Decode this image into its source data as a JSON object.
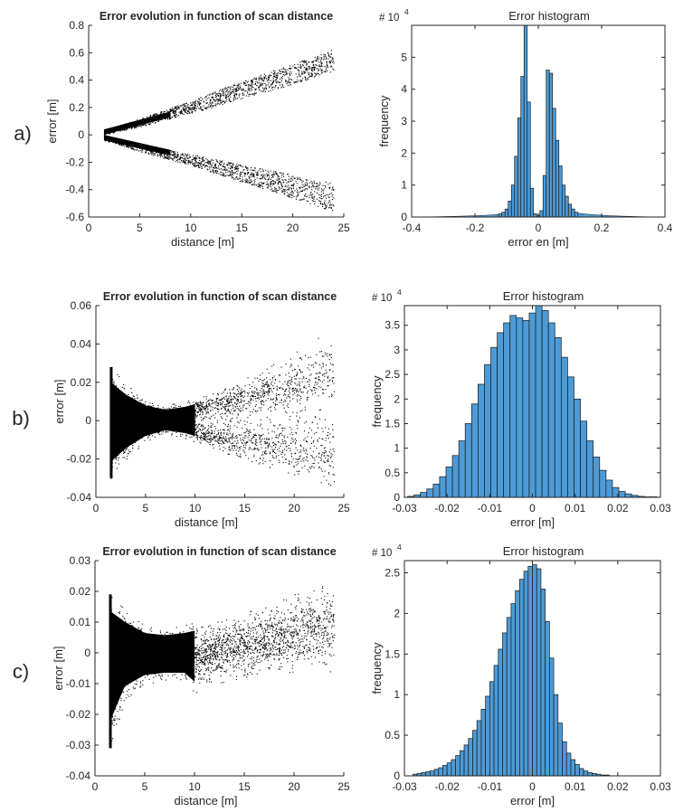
{
  "colors": {
    "scatter": "#000000",
    "hist_fill": "#4d9bd6",
    "hist_edge": "#1a1a1a",
    "axis": "#262626"
  },
  "rows": [
    {
      "label": "a)",
      "scatter": {
        "title": "Error evolution in function of scan distance",
        "xlabel": "distance [m]",
        "ylabel": "error [m]",
        "xticks": [
          "0",
          "5",
          "10",
          "15",
          "20",
          "25"
        ],
        "yticks": [
          "0.8",
          "0.6",
          "0.4",
          "0.2",
          "0",
          "-0.2",
          "-0.4",
          "-0.6"
        ]
      },
      "hist": {
        "title": "Error histogram",
        "xlabel": "error en [m]",
        "ylabel": "frequency",
        "multiplier": "# 10",
        "multiplier_exp": "4",
        "xticks": [
          "-0.4",
          "-0.2",
          "0",
          "0.2",
          "0.4"
        ],
        "yticks": [
          "5",
          "4",
          "3",
          "2",
          "1",
          "0"
        ]
      }
    },
    {
      "label": "b)",
      "scatter": {
        "title": "Error evolution in function of scan distance",
        "xlabel": "distance [m]",
        "ylabel": "error [m]",
        "xticks": [
          "0",
          "5",
          "10",
          "15",
          "20",
          "25"
        ],
        "yticks": [
          "0.06",
          "0.04",
          "0.02",
          "0",
          "-0.02",
          "-0.04"
        ]
      },
      "hist": {
        "title": "Error histogram",
        "xlabel": "error [m]",
        "ylabel": "frequency",
        "multiplier": "# 10",
        "multiplier_exp": "4",
        "xticks": [
          "-0.03",
          "-0.02",
          "-0.01",
          "0",
          "0.01",
          "0.02",
          "0.03"
        ],
        "yticks": [
          "3.5",
          "3",
          "2.5",
          "2",
          "1.5",
          "1",
          "0.5",
          "0"
        ]
      }
    },
    {
      "label": "c)",
      "scatter": {
        "title": "Error evolution in function of scan distance",
        "xlabel": "distance [m]",
        "ylabel": "error [m]",
        "xticks": [
          "0",
          "5",
          "10",
          "15",
          "20",
          "25"
        ],
        "yticks": [
          "0.03",
          "0.02",
          "0.01",
          "0",
          "-0.01",
          "-0.02",
          "-0.03",
          "-0.04"
        ]
      },
      "hist": {
        "title": "Error histogram",
        "xlabel": "error [m]",
        "ylabel": "frequency",
        "multiplier": "# 10",
        "multiplier_exp": "4",
        "xticks": [
          "-0.03",
          "-0.02",
          "-0.01",
          "0",
          "0.01",
          "0.02",
          "0.03"
        ],
        "yticks": [
          "2.5",
          "2",
          "1.5",
          "1",
          "0.5",
          "0"
        ]
      }
    }
  ],
  "chart_data": [
    {
      "type": "scatter",
      "row": "a)",
      "title": "Error evolution in function of scan distance",
      "xlabel": "distance [m]",
      "ylabel": "error [m]",
      "xlim": [
        0,
        25
      ],
      "ylim": [
        -0.6,
        0.8
      ],
      "envelope": {
        "x": [
          1.5,
          3,
          5,
          8,
          10,
          12,
          15,
          18,
          20,
          22,
          24
        ],
        "upper_branch_min": [
          0.0,
          0.03,
          0.06,
          0.12,
          0.16,
          0.2,
          0.27,
          0.33,
          0.37,
          0.42,
          0.47
        ],
        "upper_branch_max": [
          0.04,
          0.07,
          0.12,
          0.2,
          0.25,
          0.31,
          0.39,
          0.47,
          0.52,
          0.57,
          0.63
        ],
        "lower_branch_max": [
          0.0,
          -0.03,
          -0.06,
          -0.11,
          -0.14,
          -0.17,
          -0.22,
          -0.26,
          -0.29,
          -0.32,
          -0.35
        ],
        "lower_branch_min": [
          -0.04,
          -0.07,
          -0.12,
          -0.18,
          -0.22,
          -0.27,
          -0.34,
          -0.41,
          -0.46,
          -0.51,
          -0.56
        ]
      }
    },
    {
      "type": "bar",
      "row": "a)",
      "title": "Error histogram",
      "xlabel": "error en [m]",
      "ylabel": "frequency",
      "y_multiplier": 10000,
      "xlim": [
        -0.4,
        0.4
      ],
      "ylim": [
        0,
        6
      ],
      "bin_width": 0.01,
      "x": [
        -0.12,
        -0.11,
        -0.1,
        -0.09,
        -0.08,
        -0.07,
        -0.06,
        -0.05,
        -0.04,
        -0.03,
        -0.02,
        -0.01,
        0.0,
        0.01,
        0.02,
        0.03,
        0.04,
        0.05,
        0.06,
        0.07,
        0.08,
        0.09,
        0.1,
        0.11,
        0.12
      ],
      "values": [
        0.1,
        0.15,
        0.25,
        0.5,
        1.0,
        1.9,
        3.1,
        4.4,
        6.0,
        3.6,
        0.9,
        0.1,
        0.05,
        0.2,
        1.3,
        4.6,
        4.5,
        3.4,
        2.4,
        1.6,
        1.0,
        0.65,
        0.4,
        0.25,
        0.15
      ]
    },
    {
      "type": "scatter",
      "row": "b)",
      "title": "Error evolution in function of scan distance",
      "xlabel": "distance [m]",
      "ylabel": "error [m]",
      "xlim": [
        0,
        25
      ],
      "ylim": [
        -0.04,
        0.06
      ],
      "envelope": {
        "x": [
          1.5,
          3,
          5,
          7,
          9,
          10,
          12,
          15,
          18,
          20,
          22,
          24
        ],
        "max": [
          0.028,
          0.019,
          0.011,
          0.008,
          0.01,
          0.012,
          0.016,
          0.022,
          0.03,
          0.036,
          0.042,
          0.048
        ],
        "min": [
          -0.03,
          -0.02,
          -0.011,
          -0.007,
          -0.009,
          -0.011,
          -0.015,
          -0.02,
          -0.025,
          -0.028,
          -0.031,
          -0.034
        ]
      }
    },
    {
      "type": "bar",
      "row": "b)",
      "title": "Error histogram",
      "xlabel": "error [m]",
      "ylabel": "frequency",
      "y_multiplier": 10000,
      "xlim": [
        -0.03,
        0.03
      ],
      "ylim": [
        0,
        3.9
      ],
      "bin_width": 0.0015,
      "x": [
        -0.0285,
        -0.027,
        -0.0255,
        -0.024,
        -0.0225,
        -0.021,
        -0.0195,
        -0.018,
        -0.0165,
        -0.015,
        -0.0135,
        -0.012,
        -0.0105,
        -0.009,
        -0.0075,
        -0.006,
        -0.0045,
        -0.003,
        -0.0015,
        0.0,
        0.0015,
        0.003,
        0.0045,
        0.006,
        0.0075,
        0.009,
        0.0105,
        0.012,
        0.0135,
        0.015,
        0.0165,
        0.018,
        0.0195,
        0.021,
        0.0225,
        0.024,
        0.0255,
        0.027,
        0.0285
      ],
      "values": [
        0.02,
        0.05,
        0.1,
        0.17,
        0.27,
        0.42,
        0.62,
        0.85,
        1.15,
        1.5,
        1.9,
        2.3,
        2.7,
        3.05,
        3.35,
        3.55,
        3.7,
        3.65,
        3.6,
        3.75,
        3.9,
        3.8,
        3.55,
        3.25,
        2.85,
        2.45,
        2.0,
        1.55,
        1.15,
        0.82,
        0.55,
        0.35,
        0.2,
        0.12,
        0.07,
        0.04,
        0.02,
        0.01,
        0.01
      ]
    },
    {
      "type": "scatter",
      "row": "c)",
      "title": "Error evolution in function of scan distance",
      "xlabel": "distance [m]",
      "ylabel": "error [m]",
      "xlim": [
        0,
        25
      ],
      "ylim": [
        -0.04,
        0.03
      ],
      "envelope": {
        "x": [
          1.5,
          3,
          5,
          7,
          9,
          10,
          12,
          15,
          18,
          20,
          22,
          24
        ],
        "max": [
          0.019,
          0.014,
          0.009,
          0.008,
          0.009,
          0.01,
          0.011,
          0.013,
          0.016,
          0.019,
          0.022,
          0.024
        ],
        "min": [
          -0.031,
          -0.015,
          -0.01,
          -0.009,
          -0.009,
          -0.013,
          -0.01,
          -0.008,
          -0.007,
          -0.006,
          -0.006,
          -0.006
        ]
      }
    },
    {
      "type": "bar",
      "row": "c)",
      "title": "Error histogram",
      "xlabel": "error [m]",
      "ylabel": "frequency",
      "y_multiplier": 10000,
      "xlim": [
        -0.03,
        0.03
      ],
      "ylim": [
        0,
        2.65
      ],
      "bin_width": 0.001,
      "x": [
        -0.0275,
        -0.0265,
        -0.0255,
        -0.0245,
        -0.0235,
        -0.0225,
        -0.0215,
        -0.0205,
        -0.0195,
        -0.0185,
        -0.0175,
        -0.0165,
        -0.0155,
        -0.0145,
        -0.0135,
        -0.0125,
        -0.0115,
        -0.0105,
        -0.0095,
        -0.0085,
        -0.0075,
        -0.0065,
        -0.0055,
        -0.0045,
        -0.0035,
        -0.0025,
        -0.0015,
        -0.0005,
        0.0005,
        0.0015,
        0.0025,
        0.0035,
        0.0045,
        0.0055,
        0.0065,
        0.0075,
        0.0085,
        0.0095,
        0.0105,
        0.0115,
        0.0125,
        0.0135,
        0.0145,
        0.0155,
        0.0165,
        0.0175
      ],
      "values": [
        0.02,
        0.03,
        0.04,
        0.05,
        0.06,
        0.08,
        0.1,
        0.13,
        0.16,
        0.2,
        0.25,
        0.31,
        0.38,
        0.46,
        0.56,
        0.68,
        0.82,
        0.98,
        1.16,
        1.36,
        1.56,
        1.76,
        1.95,
        2.12,
        2.28,
        2.42,
        2.52,
        2.58,
        2.6,
        2.55,
        2.3,
        1.9,
        1.45,
        1.0,
        0.65,
        0.42,
        0.28,
        0.2,
        0.14,
        0.09,
        0.06,
        0.04,
        0.03,
        0.02,
        0.01,
        0.01
      ]
    }
  ]
}
